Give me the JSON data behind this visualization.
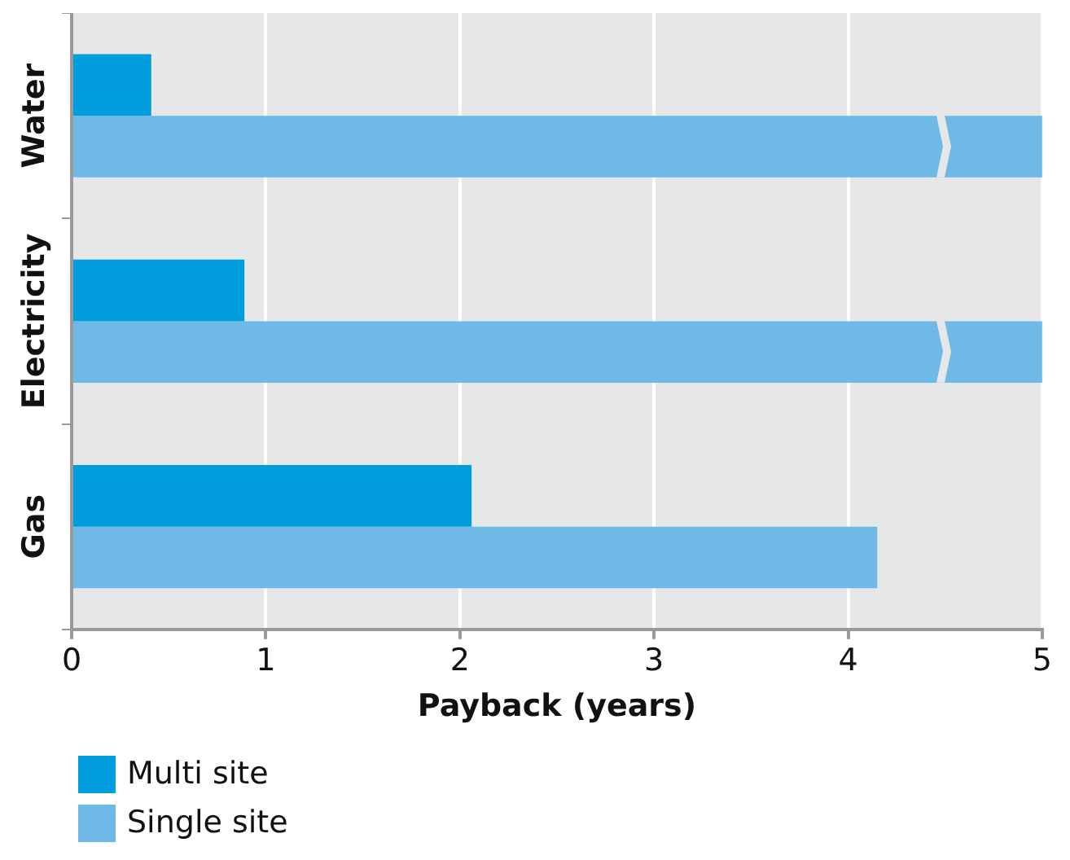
{
  "chart_data": {
    "type": "bar",
    "orientation": "horizontal",
    "categories": [
      "Water",
      "Electricity",
      "Gas"
    ],
    "series": [
      {
        "name": "Multi site",
        "color": "#009ddc",
        "values": [
          0.41,
          0.89,
          2.06
        ]
      },
      {
        "name": "Single site",
        "color": "#6eb9e6",
        "values": [
          5,
          5,
          4.15
        ]
      }
    ],
    "xlabel": "Payback (years)",
    "xlim": [
      0,
      5
    ],
    "xticks": [
      0,
      1,
      2,
      3,
      4,
      5
    ],
    "grid": "x",
    "legend": "bottom left"
  }
}
